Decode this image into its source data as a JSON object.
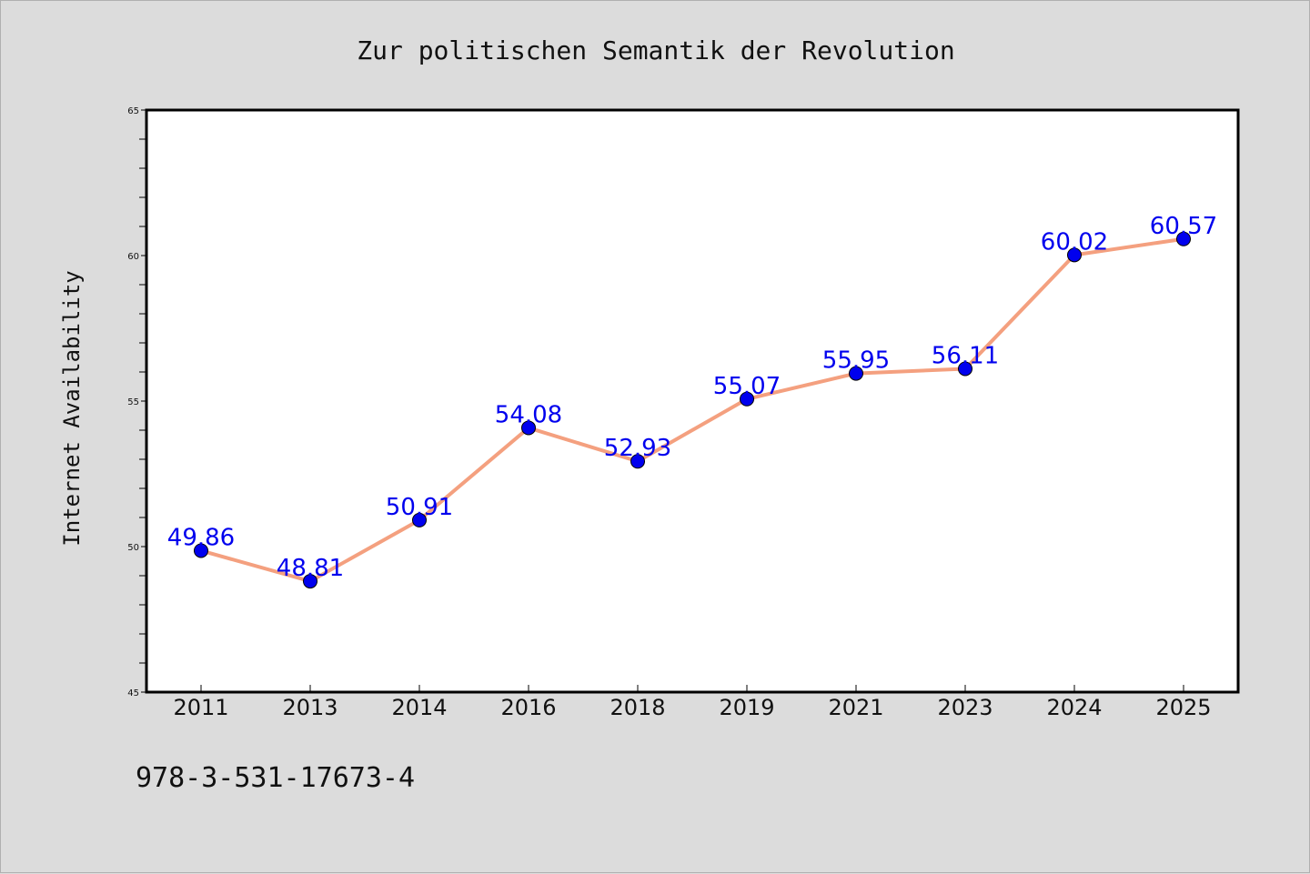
{
  "chart_data": {
    "type": "line",
    "title": "Zur politischen Semantik der Revolution",
    "xlabel": "",
    "ylabel": "Internet Availability",
    "categories": [
      "2011",
      "2013",
      "2014",
      "2016",
      "2018",
      "2019",
      "2021",
      "2023",
      "2024",
      "2025"
    ],
    "series": [
      {
        "values": [
          49.86,
          48.81,
          50.91,
          54.08,
          52.93,
          55.07,
          55.95,
          56.11,
          60.02,
          60.57
        ],
        "line_color": "#f4a07f",
        "marker_color": "#0000ee"
      }
    ],
    "data_label_color": "#0000ee",
    "ylim": [
      45,
      65
    ],
    "yticks": [
      "45",
      "50",
      "55",
      "60",
      "65"
    ],
    "grid": false,
    "legend": "none"
  },
  "footer": {
    "isbn": "978-3-531-17673-4"
  }
}
